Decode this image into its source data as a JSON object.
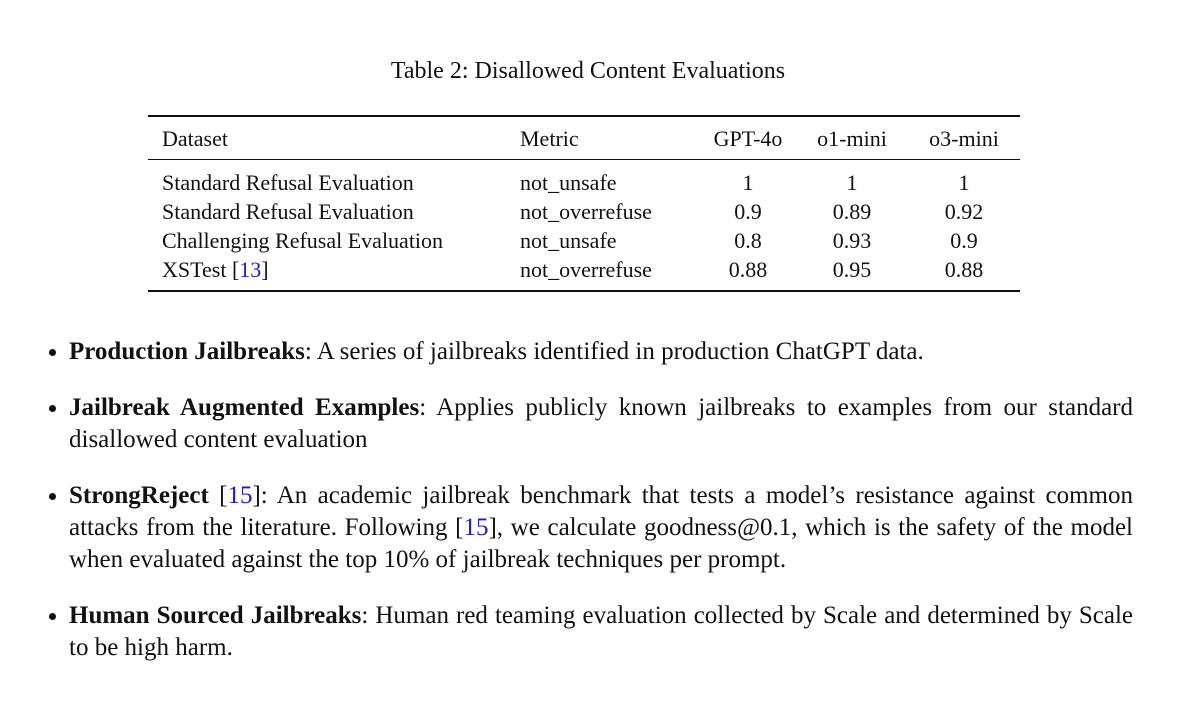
{
  "caption": "Table 2: Disallowed Content Evaluations",
  "table": {
    "header": [
      "Dataset",
      "Metric",
      "GPT-4o",
      "o1-mini",
      "o3-mini"
    ],
    "rows": [
      [
        "Standard Refusal Evaluation",
        "not_unsafe",
        1,
        1,
        1
      ],
      [
        "Standard Refusal Evaluation",
        "not_overrefuse",
        0.9,
        0.89,
        0.92
      ],
      [
        "Challenging Refusal Evaluation",
        "not_unsafe",
        0.8,
        0.93,
        0.9
      ],
      [
        {
          "text": "XSTest [",
          "cite": "13",
          "after": "]"
        },
        "not_overrefuse",
        0.88,
        0.95,
        0.88
      ]
    ]
  },
  "bullets": [
    {
      "parts": [
        {
          "style": "bold",
          "text": "Production Jailbreaks"
        },
        {
          "style": "plain",
          "text": ": A series of jailbreaks identified in production ChatGPT data."
        }
      ]
    },
    {
      "parts": [
        {
          "style": "bold",
          "text": "Jailbreak Augmented Examples"
        },
        {
          "style": "plain",
          "text": ": Applies publicly known jailbreaks to examples from our standard disallowed content evaluation"
        }
      ]
    },
    {
      "parts": [
        {
          "style": "bold",
          "text": "StrongReject"
        },
        {
          "style": "plain",
          "text": " ["
        },
        {
          "style": "cite",
          "text": "15"
        },
        {
          "style": "plain",
          "text": "]: An academic jailbreak benchmark that tests a model’s resistance against common attacks from the literature. Following ["
        },
        {
          "style": "cite",
          "text": "15"
        },
        {
          "style": "plain",
          "text": "], we calculate goodness@0.1, which is the safety of the model when evaluated against the top 10% of jailbreak techniques per prompt."
        }
      ]
    },
    {
      "parts": [
        {
          "style": "bold",
          "text": "Human Sourced Jailbreaks"
        },
        {
          "style": "plain",
          "text": ": Human red teaming evaluation collected by Scale and determined by Scale to be high harm."
        }
      ]
    }
  ]
}
